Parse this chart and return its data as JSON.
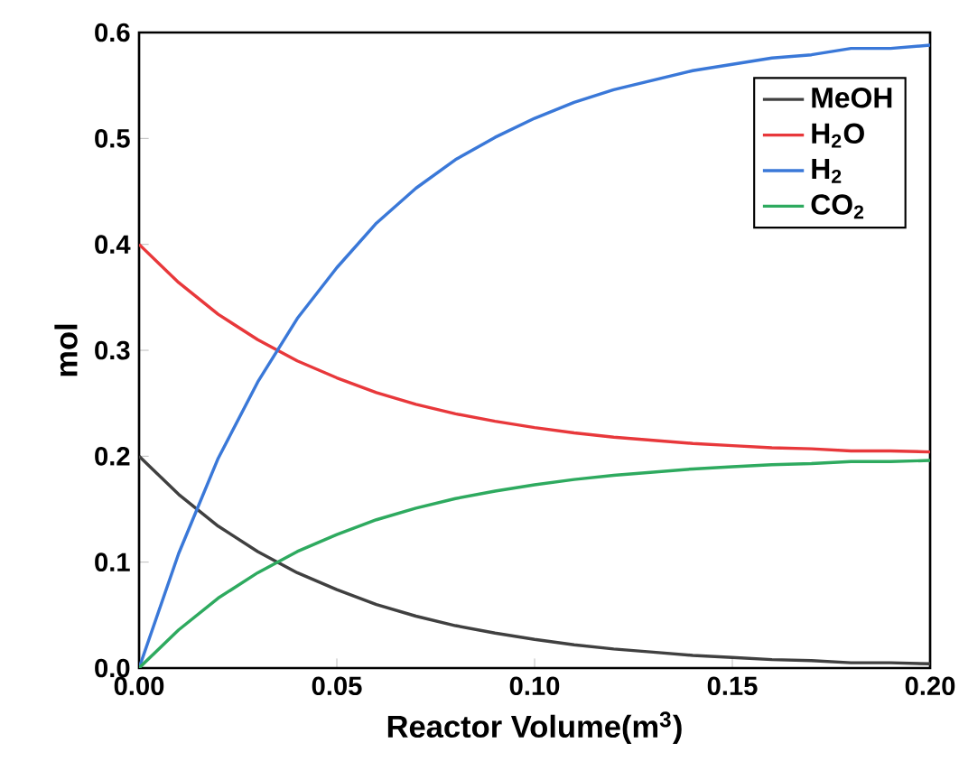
{
  "chart_data": {
    "type": "line",
    "xlabel": "Reactor Volume(m$^{3}$)",
    "ylabel": "mol",
    "x": [
      0,
      0.01,
      0.02,
      0.03,
      0.04,
      0.05,
      0.06,
      0.07,
      0.08,
      0.09,
      0.1,
      0.11,
      0.12,
      0.13,
      0.14,
      0.15,
      0.16,
      0.17,
      0.18,
      0.19,
      0.2
    ],
    "series": [
      {
        "name": "MeOH",
        "color": "#404040",
        "values": [
          0.2,
          0.164,
          0.134,
          0.11,
          0.09,
          0.074,
          0.06,
          0.049,
          0.04,
          0.033,
          0.027,
          0.022,
          0.018,
          0.015,
          0.012,
          0.01,
          0.008,
          0.007,
          0.005,
          0.005,
          0.004
        ]
      },
      {
        "name": "H$_{2}$O",
        "color": "#e8383b",
        "values": [
          0.4,
          0.364,
          0.334,
          0.31,
          0.29,
          0.274,
          0.26,
          0.249,
          0.24,
          0.233,
          0.227,
          0.222,
          0.218,
          0.215,
          0.212,
          0.21,
          0.208,
          0.207,
          0.205,
          0.205,
          0.204
        ]
      },
      {
        "name": "H$_{2}$",
        "color": "#3a78d8",
        "values": [
          0,
          0.108,
          0.198,
          0.27,
          0.33,
          0.378,
          0.42,
          0.453,
          0.48,
          0.501,
          0.519,
          0.534,
          0.546,
          0.555,
          0.564,
          0.57,
          0.576,
          0.579,
          0.585,
          0.585,
          0.588
        ]
      },
      {
        "name": "CO$_{2}$",
        "color": "#2eaa5f",
        "values": [
          0,
          0.036,
          0.066,
          0.09,
          0.11,
          0.126,
          0.14,
          0.151,
          0.16,
          0.167,
          0.173,
          0.178,
          0.182,
          0.185,
          0.188,
          0.19,
          0.192,
          0.193,
          0.195,
          0.195,
          0.196
        ]
      }
    ],
    "xlim": [
      0,
      0.2
    ],
    "ylim": [
      0,
      0.6
    ],
    "xticks": [
      {
        "value": 0,
        "label": "0.00"
      },
      {
        "value": 0.05,
        "label": "0.05"
      },
      {
        "value": 0.1,
        "label": "0.10"
      },
      {
        "value": 0.15,
        "label": "0.15"
      },
      {
        "value": 0.2,
        "label": "0.20"
      }
    ],
    "yticks": [
      {
        "value": 0,
        "label": "0.0"
      },
      {
        "value": 0.1,
        "label": "0.1"
      },
      {
        "value": 0.2,
        "label": "0.2"
      },
      {
        "value": 0.3,
        "label": "0.3"
      },
      {
        "value": 0.4,
        "label": "0.4"
      },
      {
        "value": 0.5,
        "label": "0.5"
      },
      {
        "value": 0.6,
        "label": "0.6"
      }
    ],
    "legend": "top right",
    "marker": "none",
    "line_style": "solid"
  }
}
